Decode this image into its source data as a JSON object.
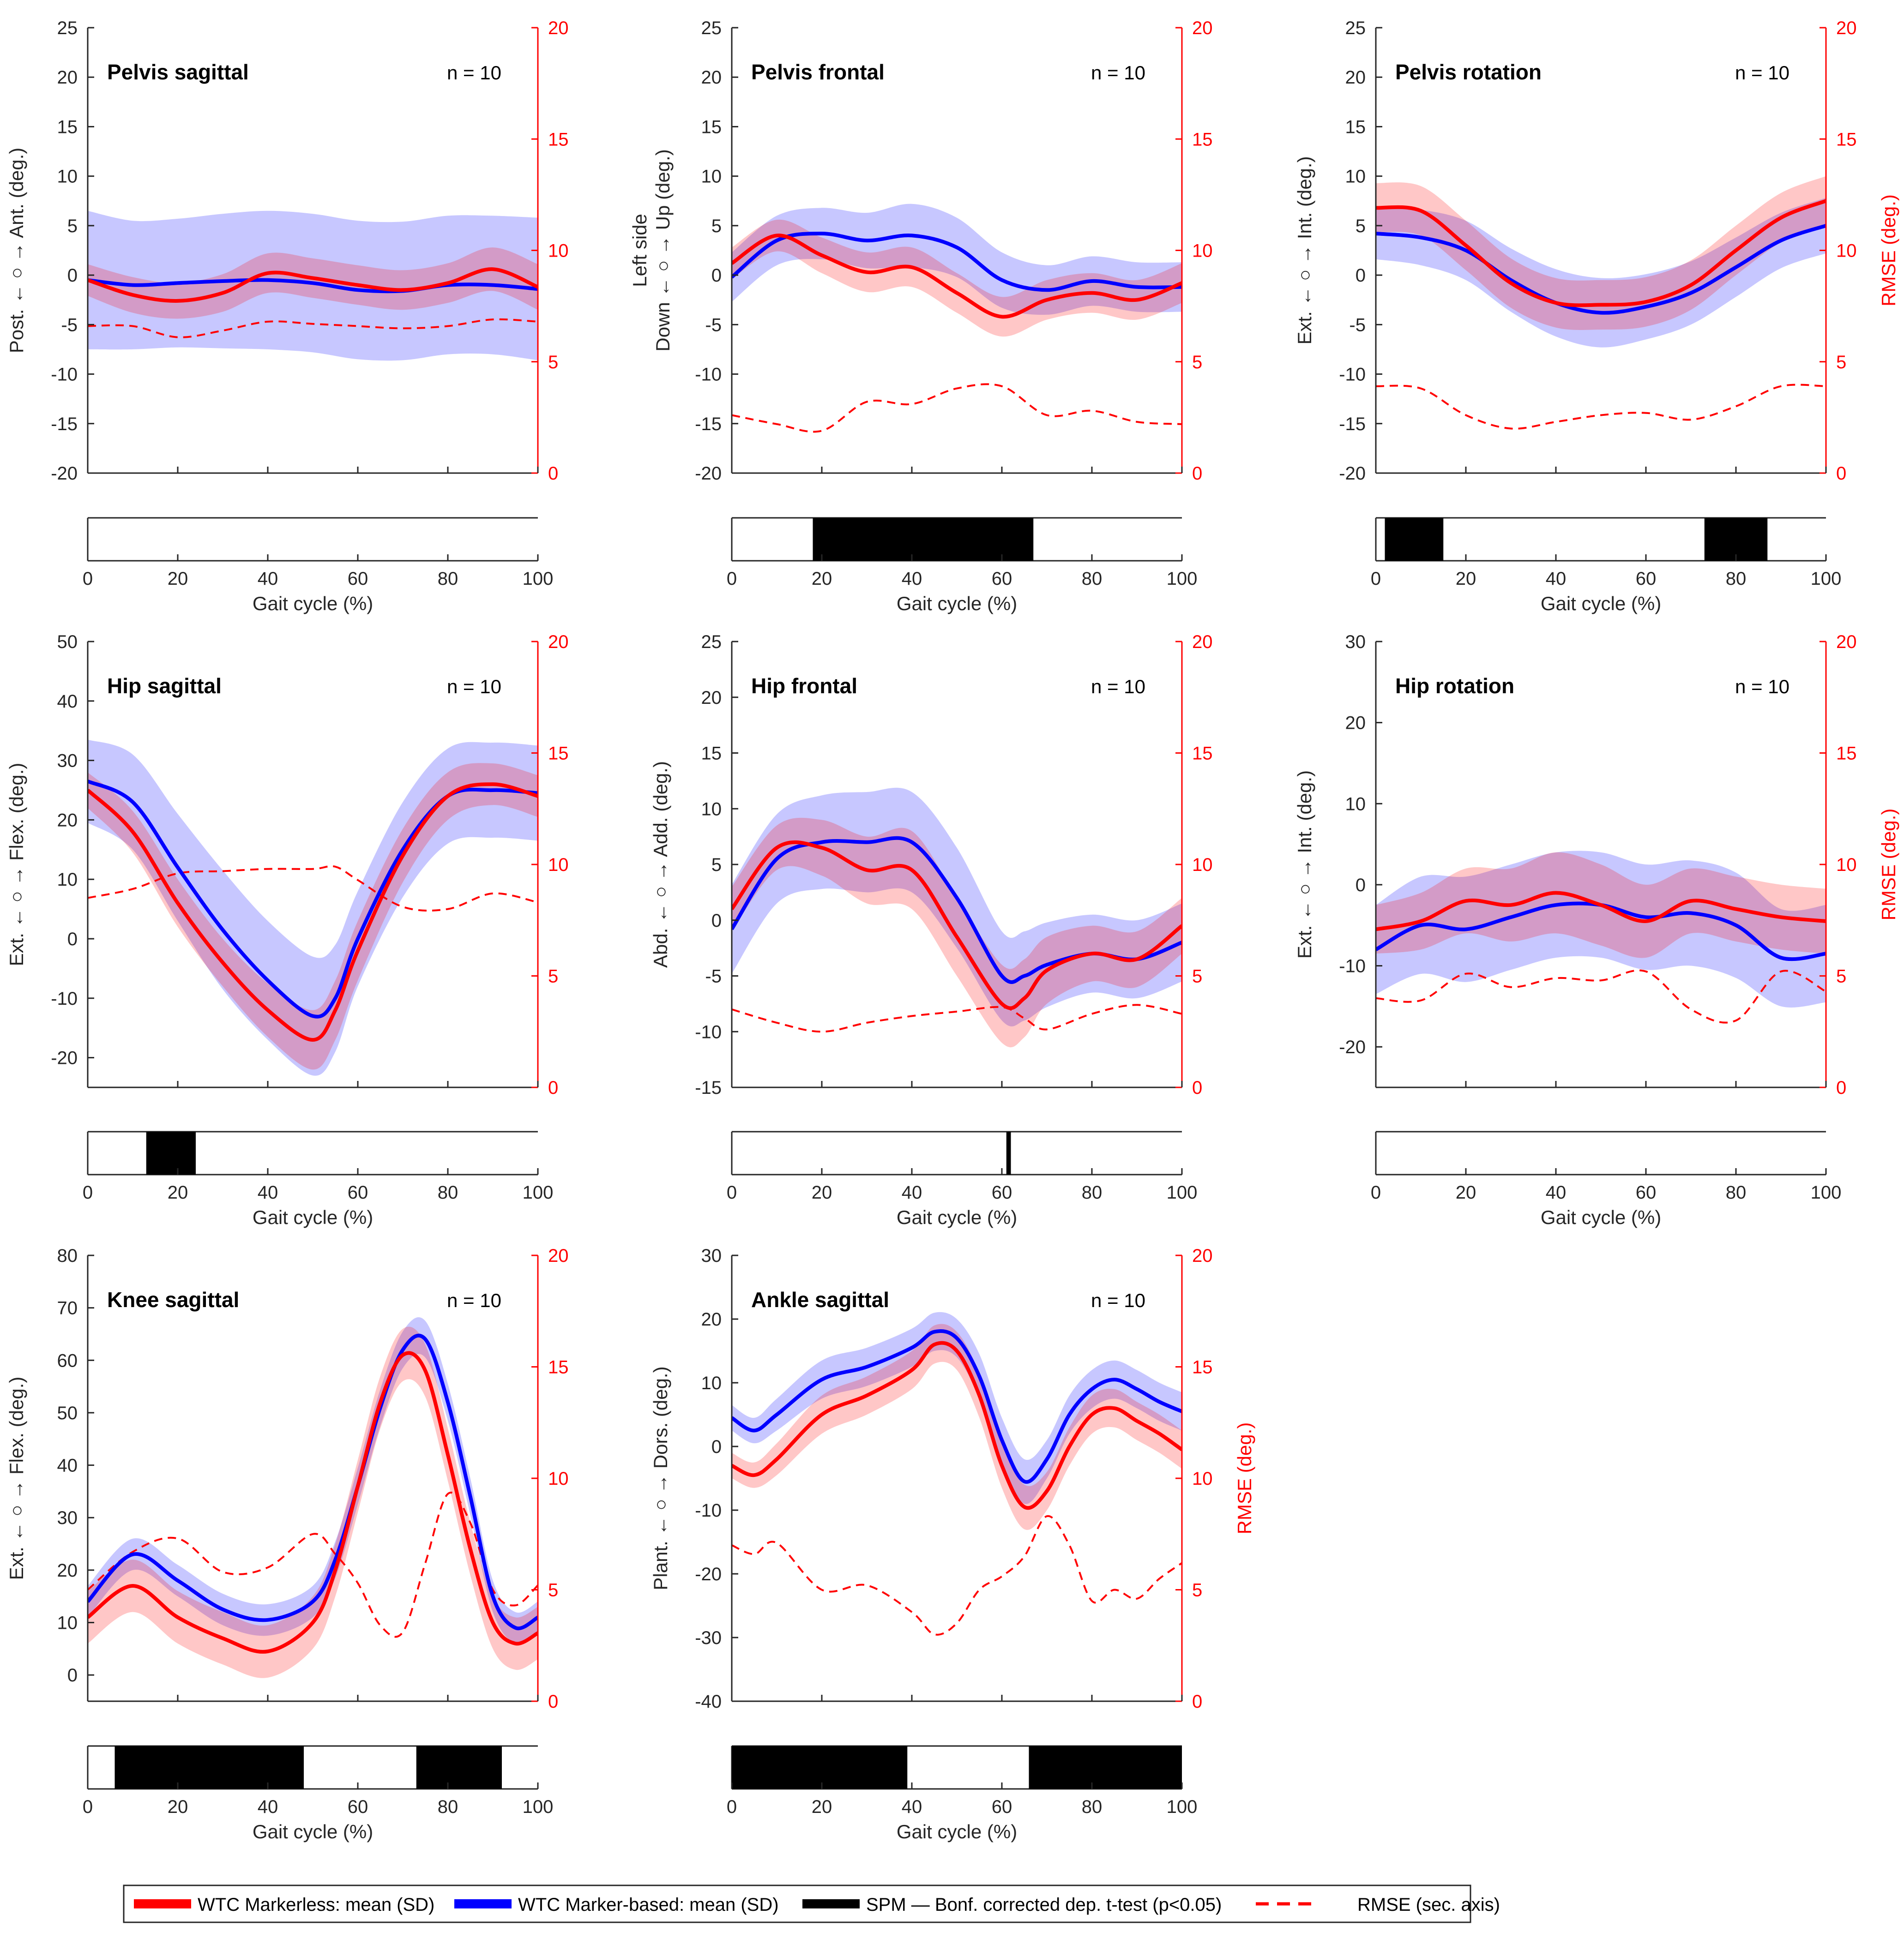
{
  "colors": {
    "markerless": "#ff0000",
    "marker_based": "#0000ff",
    "blend": "#6a17c8",
    "spm": "#000000",
    "axis": "#262626",
    "rmse_axis": "#ff0000"
  },
  "legend": {
    "markerless": "WTC Markerless: mean (SD)",
    "marker_based": "WTC Marker-based: mean (SD)",
    "spm": "SPM — Bonf. corrected dep. t-test (p<0.05)",
    "rmse": "RMSE (sec. axis)"
  },
  "chart_data": [
    {
      "type": "line",
      "title": "Pelvis sagittal",
      "n_label": "n = 10",
      "ylabel": "Post. ← ○ → Ant. (deg.)",
      "ylabel_lines": [
        "Post. ← ○ → Ant. (deg.)"
      ],
      "xlabel": "Gait cycle (%)",
      "y2label": "",
      "ylim": [
        -20,
        25
      ],
      "yticks": [
        -20,
        -15,
        -10,
        -5,
        0,
        5,
        10,
        15,
        20,
        25
      ],
      "y2lim": [
        0,
        20
      ],
      "y2ticks": [
        0,
        5,
        10,
        15,
        20
      ],
      "xlim": [
        0,
        100
      ],
      "xticks": [
        0,
        20,
        40,
        60,
        80,
        100
      ],
      "x": [
        0,
        10,
        20,
        30,
        40,
        50,
        60,
        70,
        80,
        90,
        100
      ],
      "markerless_mean": [
        -0.5,
        -2.0,
        -2.6,
        -1.8,
        0.2,
        -0.3,
        -1.0,
        -1.5,
        -0.8,
        0.6,
        -1.2
      ],
      "markerless_sd": [
        1.6,
        1.8,
        1.8,
        1.9,
        2.0,
        2.0,
        2.0,
        2.0,
        2.0,
        2.2,
        2.3
      ],
      "marker_based_mean": [
        -0.5,
        -1.0,
        -0.8,
        -0.6,
        -0.5,
        -0.8,
        -1.5,
        -1.6,
        -1.0,
        -1.0,
        -1.4
      ],
      "marker_based_sd": [
        7.0,
        6.5,
        6.5,
        6.8,
        7.0,
        7.0,
        7.0,
        7.0,
        7.0,
        7.0,
        7.2
      ],
      "rmse": [
        6.6,
        6.6,
        6.1,
        6.4,
        6.8,
        6.7,
        6.6,
        6.5,
        6.6,
        6.9,
        6.8
      ],
      "spm_clusters": []
    },
    {
      "type": "line",
      "title": "Pelvis frontal",
      "n_label": "n = 10",
      "ylabel": "Left side Down ← ○ → Up (deg.)",
      "ylabel_lines": [
        "Left side",
        "Down ← ○ → Up  (deg.)"
      ],
      "xlabel": "Gait cycle (%)",
      "y2label": "",
      "ylim": [
        -20,
        25
      ],
      "yticks": [
        -20,
        -15,
        -10,
        -5,
        0,
        5,
        10,
        15,
        20,
        25
      ],
      "y2lim": [
        0,
        20
      ],
      "y2ticks": [
        0,
        5,
        10,
        15,
        20
      ],
      "xlim": [
        0,
        100
      ],
      "xticks": [
        0,
        20,
        40,
        60,
        80,
        100
      ],
      "x": [
        0,
        10,
        20,
        30,
        40,
        50,
        60,
        70,
        80,
        90,
        100
      ],
      "markerless_mean": [
        1.2,
        4.0,
        2.0,
        0.3,
        0.8,
        -1.8,
        -4.2,
        -2.5,
        -1.8,
        -2.5,
        -0.8
      ],
      "markerless_sd": [
        1.6,
        1.6,
        1.8,
        2.0,
        2.0,
        2.0,
        2.0,
        2.0,
        2.0,
        2.0,
        2.0
      ],
      "marker_based_mean": [
        -0.2,
        3.5,
        4.2,
        3.5,
        4.0,
        2.8,
        -0.5,
        -1.5,
        -0.6,
        -1.2,
        -1.2
      ],
      "marker_based_sd": [
        2.5,
        2.5,
        2.6,
        2.8,
        3.2,
        3.0,
        2.8,
        2.5,
        2.5,
        2.5,
        2.5
      ],
      "rmse": [
        2.6,
        2.2,
        1.9,
        3.2,
        3.1,
        3.8,
        3.9,
        2.6,
        2.8,
        2.3,
        2.2
      ],
      "spm_clusters": [
        [
          18,
          67
        ]
      ]
    },
    {
      "type": "line",
      "title": "Pelvis rotation",
      "n_label": "n = 10",
      "ylabel": "Ext. ← ○ → Int. (deg.)",
      "ylabel_lines": [
        "Ext. ← ○ → Int.  (deg.)"
      ],
      "xlabel": "Gait cycle (%)",
      "y2label": "RMSE (deg.)",
      "ylim": [
        -20,
        25
      ],
      "yticks": [
        -20,
        -15,
        -10,
        -5,
        0,
        5,
        10,
        15,
        20,
        25
      ],
      "y2lim": [
        0,
        20
      ],
      "y2ticks": [
        0,
        5,
        10,
        15,
        20
      ],
      "xlim": [
        0,
        100
      ],
      "xticks": [
        0,
        20,
        40,
        60,
        80,
        100
      ],
      "x": [
        0,
        10,
        20,
        30,
        40,
        50,
        60,
        70,
        80,
        90,
        100
      ],
      "markerless_mean": [
        6.8,
        6.5,
        3.0,
        -0.8,
        -2.8,
        -3.0,
        -2.7,
        -1.0,
        2.5,
        5.8,
        7.5
      ],
      "markerless_sd": [
        2.5,
        2.5,
        2.5,
        2.5,
        2.5,
        2.5,
        2.5,
        2.5,
        2.5,
        2.5,
        2.5
      ],
      "marker_based_mean": [
        4.2,
        3.8,
        2.5,
        -0.5,
        -2.8,
        -3.8,
        -3.2,
        -1.8,
        0.8,
        3.5,
        5.0
      ],
      "marker_based_sd": [
        2.6,
        2.8,
        3.0,
        3.2,
        3.4,
        3.5,
        3.3,
        3.2,
        3.0,
        2.8,
        2.8
      ],
      "rmse": [
        3.9,
        3.8,
        2.6,
        2.0,
        2.3,
        2.6,
        2.7,
        2.4,
        3.0,
        3.9,
        3.9
      ],
      "spm_clusters": [
        [
          2,
          15
        ],
        [
          73,
          87
        ]
      ]
    },
    {
      "type": "line",
      "title": "Hip sagittal",
      "n_label": "n = 10",
      "ylabel": "Ext. ← ○ → Flex. (deg.)",
      "ylabel_lines": [
        "Ext. ← ○ → Flex. (deg.)"
      ],
      "xlabel": "Gait cycle (%)",
      "y2label": "",
      "ylim": [
        -25,
        50
      ],
      "yticks": [
        -20,
        -10,
        0,
        10,
        20,
        30,
        40,
        50
      ],
      "y2lim": [
        0,
        20
      ],
      "y2ticks": [
        0,
        5,
        10,
        15,
        20
      ],
      "xlim": [
        0,
        100
      ],
      "xticks": [
        0,
        20,
        40,
        60,
        80,
        100
      ],
      "x": [
        0,
        10,
        20,
        30,
        40,
        50,
        55,
        60,
        70,
        80,
        90,
        100
      ],
      "markerless_mean": [
        25,
        18,
        6,
        -4,
        -12,
        -17,
        -12,
        -2,
        14,
        24,
        26,
        24
      ],
      "markerless_sd": [
        3,
        3.5,
        4,
        4,
        4.5,
        5,
        5,
        5,
        4.5,
        4,
        3.5,
        3.5
      ],
      "marker_based_mean": [
        26.5,
        23,
        12,
        1.5,
        -7,
        -13,
        -10,
        0,
        15,
        24,
        25,
        24.5
      ],
      "marker_based_sd": [
        7,
        8,
        9,
        10,
        10,
        10,
        9,
        8,
        8,
        8,
        8,
        8
      ],
      "rmse": [
        8.5,
        8.9,
        9.6,
        9.7,
        9.8,
        9.8,
        9.9,
        9.3,
        8.1,
        8.0,
        8.7,
        8.3
      ],
      "spm_clusters": [
        [
          13,
          24
        ]
      ]
    },
    {
      "type": "line",
      "title": "Hip frontal",
      "n_label": "n = 10",
      "ylabel": "Abd. ← ○ → Add. (deg.)",
      "ylabel_lines": [
        "Abd. ← ○ → Add. (deg.)"
      ],
      "xlabel": "Gait cycle (%)",
      "y2label": "",
      "ylim": [
        -15,
        25
      ],
      "yticks": [
        -15,
        -10,
        -5,
        0,
        5,
        10,
        15,
        20,
        25
      ],
      "y2lim": [
        0,
        20
      ],
      "y2ticks": [
        0,
        5,
        10,
        15,
        20
      ],
      "xlim": [
        0,
        100
      ],
      "xticks": [
        0,
        20,
        40,
        60,
        80,
        100
      ],
      "x": [
        0,
        10,
        20,
        30,
        40,
        50,
        60,
        65,
        70,
        80,
        90,
        100
      ],
      "markerless_mean": [
        1,
        6.5,
        6.5,
        4.5,
        4.5,
        -1.5,
        -7.5,
        -7,
        -4.5,
        -3,
        -3.5,
        -0.5
      ],
      "markerless_sd": [
        2,
        2,
        2.5,
        3,
        3.5,
        3.5,
        3.5,
        3.5,
        3,
        2.5,
        2.5,
        2.5
      ],
      "marker_based_mean": [
        -0.8,
        5.5,
        7,
        7,
        7,
        2,
        -5,
        -5,
        -4,
        -3,
        -3.5,
        -2
      ],
      "marker_based_sd": [
        4,
        4,
        4.2,
        4.5,
        4.5,
        4.5,
        4,
        4,
        3.8,
        3.5,
        3.5,
        3.5
      ],
      "rmse": [
        3.5,
        2.9,
        2.5,
        2.9,
        3.2,
        3.4,
        3.6,
        3.1,
        2.6,
        3.3,
        3.7,
        3.3
      ],
      "spm_clusters": [
        [
          61,
          62
        ]
      ]
    },
    {
      "type": "line",
      "title": "Hip rotation",
      "n_label": "n = 10",
      "ylabel": "Ext. ← ○ → Int. (deg.)",
      "ylabel_lines": [
        "Ext. ← ○ → Int. (deg.)"
      ],
      "xlabel": "Gait cycle (%)",
      "y2label": "RMSE (deg.)",
      "ylim": [
        -25,
        30
      ],
      "yticks": [
        -20,
        -10,
        0,
        10,
        20,
        30
      ],
      "y2lim": [
        0,
        20
      ],
      "y2ticks": [
        0,
        5,
        10,
        15,
        20
      ],
      "xlim": [
        0,
        100
      ],
      "xticks": [
        0,
        20,
        40,
        60,
        80,
        100
      ],
      "x": [
        0,
        10,
        20,
        30,
        40,
        50,
        60,
        70,
        80,
        90,
        100
      ],
      "markerless_mean": [
        -5.5,
        -4.5,
        -2,
        -2.5,
        -1,
        -2.5,
        -4.5,
        -2,
        -3,
        -4,
        -4.5
      ],
      "markerless_sd": [
        3,
        3.5,
        4,
        4.5,
        5,
        5,
        4.5,
        4,
        4,
        4,
        4
      ],
      "marker_based_mean": [
        -8,
        -5,
        -5.5,
        -4,
        -2.5,
        -2.5,
        -4,
        -3.5,
        -5,
        -9,
        -8.5
      ],
      "marker_based_sd": [
        5.5,
        6,
        6.5,
        6.5,
        6.5,
        6.5,
        6.5,
        6.5,
        6.5,
        6,
        6
      ],
      "rmse": [
        4.0,
        3.9,
        5.1,
        4.5,
        4.9,
        4.8,
        5.2,
        3.5,
        3.0,
        5.2,
        4.3
      ],
      "spm_clusters": []
    },
    {
      "type": "line",
      "title": "Knee sagittal",
      "n_label": "n = 10",
      "ylabel": "Ext. ← ○ → Flex. (deg.)",
      "ylabel_lines": [
        "Ext. ← ○ → Flex. (deg.)"
      ],
      "xlabel": "Gait cycle (%)",
      "y2label": "",
      "ylim": [
        -5,
        80
      ],
      "yticks": [
        0,
        10,
        20,
        30,
        40,
        50,
        60,
        70,
        80
      ],
      "y2lim": [
        0,
        20
      ],
      "y2ticks": [
        0,
        5,
        10,
        15,
        20
      ],
      "xlim": [
        0,
        100
      ],
      "xticks": [
        0,
        20,
        40,
        60,
        80,
        100
      ],
      "x": [
        0,
        10,
        20,
        30,
        40,
        50,
        55,
        60,
        65,
        70,
        75,
        80,
        85,
        90,
        95,
        100
      ],
      "markerless_mean": [
        11,
        17,
        11,
        7,
        4.5,
        10,
        20,
        36,
        52,
        61,
        58,
        42,
        24,
        10,
        6,
        8
      ],
      "markerless_sd": [
        5,
        5,
        5,
        5,
        5,
        5,
        5,
        5,
        5,
        5,
        5,
        5,
        5,
        5,
        5,
        5
      ],
      "marker_based_mean": [
        14,
        23,
        18,
        12.5,
        10.5,
        14,
        22,
        36,
        51,
        62,
        64,
        52,
        34,
        15,
        9,
        11
      ],
      "marker_based_sd": [
        3,
        3,
        3,
        3,
        3,
        3,
        3.5,
        3.5,
        3.5,
        3.5,
        3.5,
        3.5,
        3.5,
        3,
        3,
        3
      ],
      "rmse": [
        5.0,
        6.7,
        7.3,
        5.8,
        6.0,
        7.5,
        6.6,
        5.3,
        3.4,
        3.1,
        6.2,
        9.3,
        8.0,
        5.0,
        4.3,
        5.2
      ],
      "spm_clusters": [
        [
          6,
          48
        ],
        [
          73,
          92
        ]
      ]
    },
    {
      "type": "line",
      "title": "Ankle sagittal",
      "n_label": "n = 10",
      "ylabel": "Plant. ← ○ → Dors. (deg.)",
      "ylabel_lines": [
        "Plant. ← ○ → Dors. (deg.)"
      ],
      "xlabel": "Gait cycle (%)",
      "y2label": "RMSE (deg.)",
      "ylim": [
        -40,
        30
      ],
      "yticks": [
        -40,
        -30,
        -20,
        -10,
        0,
        10,
        20,
        30
      ],
      "y2lim": [
        0,
        20
      ],
      "y2ticks": [
        0,
        5,
        10,
        15,
        20
      ],
      "xlim": [
        0,
        100
      ],
      "xticks": [
        0,
        20,
        40,
        60,
        80,
        100
      ],
      "x": [
        0,
        5,
        10,
        20,
        30,
        40,
        45,
        50,
        55,
        60,
        65,
        70,
        75,
        80,
        85,
        90,
        95,
        100
      ],
      "markerless_mean": [
        -3,
        -4.5,
        -2,
        5,
        8,
        12,
        16,
        15,
        8,
        -3,
        -9.5,
        -7,
        0,
        5,
        6,
        4,
        2,
        -0.5
      ],
      "markerless_sd": [
        2,
        2,
        2.5,
        3,
        3,
        3,
        3,
        3,
        3.5,
        3.5,
        3.5,
        3,
        3,
        3,
        3,
        3,
        3,
        3
      ],
      "marker_based_mean": [
        4.5,
        2.5,
        5,
        10.5,
        12.5,
        15.5,
        18,
        17,
        11,
        1,
        -5.5,
        -2,
        5,
        9,
        10.5,
        9,
        7,
        5.5
      ],
      "marker_based_sd": [
        2,
        2,
        2.5,
        3,
        3,
        3,
        3,
        3,
        3.5,
        3.5,
        3.5,
        3,
        3,
        3,
        3,
        3,
        3,
        3
      ],
      "rmse": [
        7.0,
        6.6,
        7.1,
        5.0,
        5.2,
        4.0,
        3.0,
        3.5,
        5.0,
        5.6,
        6.5,
        8.3,
        7.0,
        4.5,
        5.0,
        4.6,
        5.5,
        6.2
      ],
      "spm_clusters": [
        [
          0,
          39
        ],
        [
          66,
          100
        ]
      ]
    }
  ]
}
